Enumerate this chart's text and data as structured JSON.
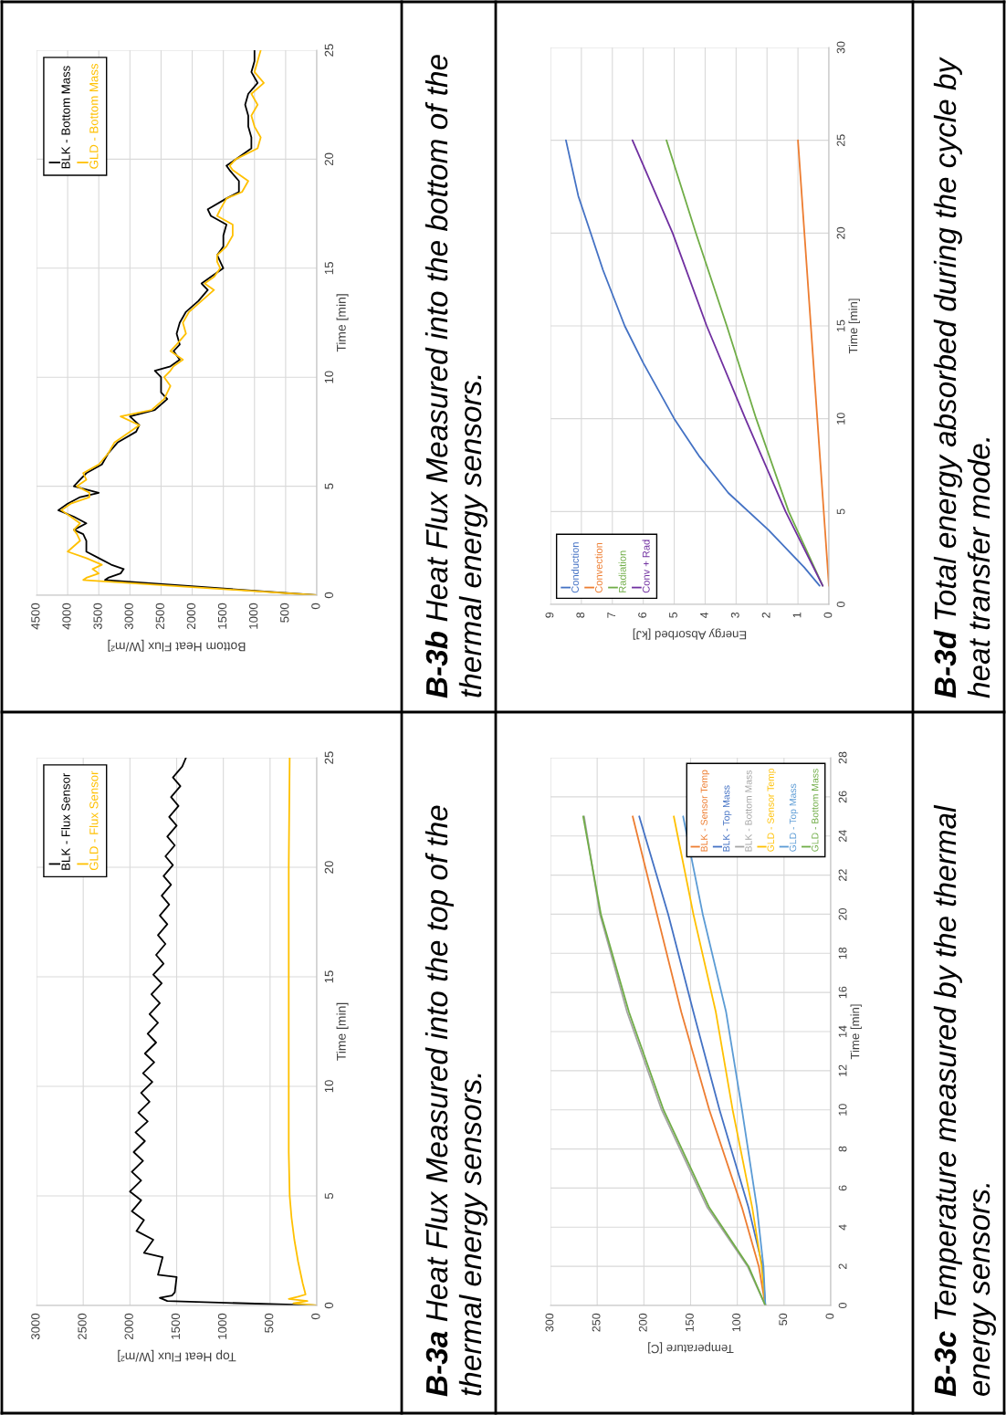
{
  "chart_data": [
    {
      "type": "line",
      "annotations": [
        "B-3a Heat Flux Measured into the top of the thermal energy sensors."
      ],
      "xlabel": "Top Heat Flux [W/m²]",
      "ylabel": "Time [min]",
      "xlim": [
        3000,
        0
      ],
      "xticks": [
        0,
        500,
        1000,
        1500,
        2000,
        2500,
        3000
      ],
      "ylim": [
        0,
        25
      ],
      "yticks": [
        0,
        5,
        10,
        15,
        20,
        25
      ],
      "grid": true,
      "legend": "top left",
      "series": [
        {
          "name": "BLK - Flux Sensor",
          "color": "#000000",
          "values": [
            0,
            0.2,
            0.35,
            0.45,
            0.6,
            1.3,
            1.4,
            2.2,
            2.4,
            3.0,
            3.4,
            3.9,
            4.3,
            4.8,
            5.2,
            5.7,
            6.1,
            6.6,
            7.0,
            7.5,
            7.9,
            8.4,
            8.8,
            9.3,
            9.7,
            10.2,
            10.6,
            11.1,
            11.5,
            12.0,
            12.4,
            12.9,
            13.3,
            13.8,
            14.2,
            14.7,
            15.1,
            15.6,
            16.0,
            16.5,
            16.9,
            17.4,
            17.8,
            18.3,
            18.7,
            19.2,
            19.6,
            20.1,
            20.5,
            21.0,
            21.4,
            21.9,
            22.3,
            22.8,
            23.2,
            23.7,
            24.1,
            24.6,
            25.0
          ],
          "x": [
            0,
            1600,
            1680,
            1550,
            1520,
            1500,
            1700,
            1650,
            1850,
            1750,
            1930,
            1850,
            1980,
            1880,
            2000,
            1880,
            1980,
            1860,
            1960,
            1840,
            1940,
            1810,
            1910,
            1790,
            1880,
            1760,
            1860,
            1740,
            1840,
            1720,
            1810,
            1700,
            1790,
            1680,
            1770,
            1660,
            1750,
            1640,
            1720,
            1620,
            1700,
            1600,
            1680,
            1580,
            1660,
            1560,
            1640,
            1540,
            1620,
            1520,
            1600,
            1500,
            1580,
            1480,
            1560,
            1460,
            1540,
            1440,
            1400
          ]
        },
        {
          "name": "GLD - Flux Sensor",
          "color": "#ffc000",
          "values": [
            0,
            0.1,
            0.2,
            0.3,
            0.4,
            0.5,
            1,
            2,
            3,
            4,
            5,
            7,
            10,
            15,
            20,
            25
          ],
          "x": [
            0,
            250,
            100,
            300,
            200,
            120,
            150,
            200,
            240,
            270,
            290,
            300,
            300,
            300,
            300,
            290
          ]
        }
      ]
    },
    {
      "type": "line",
      "annotations": [
        "B-3b Heat Flux Measured into the bottom of the thermal energy sensors."
      ],
      "xlabel": "Bottom Heat Flux [W/m²]",
      "ylabel": "Time [min]",
      "xlim": [
        4500,
        0
      ],
      "xticks": [
        0,
        500,
        1000,
        1500,
        2000,
        2500,
        3000,
        3500,
        4000,
        4500
      ],
      "ylim": [
        0,
        25
      ],
      "yticks": [
        0,
        5,
        10,
        15,
        20,
        25
      ],
      "grid": true,
      "legend": "top left",
      "series": [
        {
          "name": "BLK - Bottom Mass",
          "color": "#000000",
          "values": [
            0,
            0.7,
            0.8,
            1.0,
            1.2,
            1.4,
            1.7,
            2.0,
            2.5,
            2.8,
            3.0,
            3.3,
            3.6,
            3.9,
            4.2,
            4.5,
            4.7,
            5.0,
            5.3,
            5.6,
            6.0,
            6.5,
            7.0,
            7.5,
            7.8,
            8.2,
            8.5,
            9.0,
            9.3,
            9.6,
            10.0,
            10.3,
            10.5,
            10.8,
            11.2,
            11.5,
            12.0,
            12.5,
            13.0,
            13.5,
            14.0,
            14.3,
            14.6,
            15.0,
            15.3,
            15.6,
            16.0,
            16.5,
            17.0,
            17.4,
            17.7,
            18.2,
            18.5,
            19.0,
            19.5,
            19.7,
            20.0,
            20.5,
            21.0,
            21.5,
            22.0,
            22.5,
            23.0,
            23.5,
            24.0,
            24.5,
            25
          ],
          "x": [
            0,
            3400,
            3350,
            3150,
            3100,
            3300,
            3500,
            3700,
            3700,
            3750,
            3900,
            3700,
            3900,
            4150,
            4000,
            3800,
            3500,
            3900,
            3800,
            3700,
            3450,
            3350,
            3200,
            2900,
            2850,
            3000,
            2600,
            2400,
            2500,
            2500,
            2500,
            2600,
            2350,
            2200,
            2300,
            2200,
            2250,
            2200,
            2100,
            1900,
            1750,
            1850,
            1700,
            1500,
            1550,
            1600,
            1500,
            1500,
            1450,
            1700,
            1750,
            1450,
            1250,
            1250,
            1400,
            1450,
            1300,
            1050,
            1050,
            1100,
            1100,
            1150,
            1100,
            950,
            1050,
            1000,
            1000
          ]
        },
        {
          "name": "GLD - Bottom Mass",
          "color": "#ffc000",
          "values": [
            0,
            0.7,
            0.8,
            1.0,
            1.2,
            1.4,
            1.7,
            2.0,
            2.5,
            2.8,
            3.0,
            3.3,
            3.6,
            3.9,
            4.2,
            4.5,
            4.7,
            5.0,
            5.3,
            5.6,
            6.0,
            6.5,
            7.0,
            7.5,
            7.8,
            8.2,
            8.5,
            9.0,
            9.3,
            9.6,
            10.0,
            10.3,
            10.5,
            10.8,
            11.2,
            11.5,
            12.0,
            12.5,
            13.0,
            13.5,
            14.0,
            14.3,
            14.6,
            15.0,
            15.3,
            15.6,
            16.0,
            16.5,
            17.0,
            17.4,
            17.7,
            18.2,
            18.5,
            19.0,
            19.5,
            19.7,
            20.0,
            20.5,
            21.0,
            21.5,
            22.0,
            22.5,
            23.0,
            23.5,
            24.0,
            24.5,
            25
          ],
          "x": [
            0,
            3750,
            3700,
            3500,
            3600,
            3450,
            3700,
            4000,
            3800,
            3850,
            3900,
            3800,
            3950,
            4100,
            3950,
            3650,
            3650,
            3850,
            3700,
            3750,
            3500,
            3350,
            3250,
            3000,
            2850,
            3150,
            2650,
            2450,
            2400,
            2350,
            2450,
            2350,
            2300,
            2150,
            2350,
            2250,
            2100,
            2150,
            2050,
            1850,
            1650,
            1800,
            1650,
            1550,
            1600,
            1600,
            1450,
            1350,
            1350,
            1600,
            1550,
            1450,
            1200,
            1100,
            1350,
            1400,
            1300,
            950,
            900,
            1000,
            1050,
            950,
            1050,
            850,
            1000,
            950,
            900
          ]
        }
      ]
    },
    {
      "type": "line",
      "annotations": [
        "B-3c Temperature measured by the thermal energy sensors."
      ],
      "xlabel": "Temperature [C]",
      "ylabel": "Time [min]",
      "xlim": [
        300,
        0
      ],
      "xticks": [
        0,
        50,
        100,
        150,
        200,
        250,
        300
      ],
      "ylim": [
        0,
        28
      ],
      "yticks": [
        0,
        2,
        4,
        6,
        8,
        10,
        12,
        14,
        16,
        18,
        20,
        22,
        24,
        26,
        28
      ],
      "grid": true,
      "legend": "top right",
      "series": [
        {
          "name": "BLK - Sensor Temp",
          "color": "#ed7d31",
          "values": [
            0,
            2,
            5,
            10,
            15,
            20,
            25
          ],
          "x": [
            70,
            77,
            95,
            130,
            160,
            186,
            212
          ]
        },
        {
          "name": "BLK - Top Mass",
          "color": "#4472c4",
          "values": [
            0,
            2,
            5,
            10,
            15,
            20,
            25
          ],
          "x": [
            70,
            73,
            88,
            119,
            147,
            174,
            205
          ]
        },
        {
          "name": "BLK - Bottom Mass",
          "color": "#a5a5a5",
          "values": [
            0,
            2,
            5,
            10,
            15,
            20,
            25
          ],
          "x": [
            70,
            89,
            132,
            181,
            218,
            247,
            264
          ]
        },
        {
          "name": "GLD - Sensor Temp",
          "color": "#ffc000",
          "values": [
            0,
            2,
            5,
            10,
            15,
            20,
            25
          ],
          "x": [
            70,
            74,
            84,
            105,
            123,
            147,
            168
          ]
        },
        {
          "name": "GLD - Top Mass",
          "color": "#5b9bd5",
          "values": [
            0,
            2,
            5,
            10,
            15,
            20,
            25
          ],
          "x": [
            70,
            72,
            79,
            95,
            112,
            137,
            158
          ]
        },
        {
          "name": "GLD - Bottom Mass",
          "color": "#70ad47",
          "values": [
            0,
            2,
            5,
            10,
            15,
            20,
            25
          ],
          "x": [
            70,
            88,
            130,
            179,
            216,
            246,
            265
          ]
        }
      ]
    },
    {
      "type": "line",
      "annotations": [
        "B-3d Total energy absorbed during the cycle by heat transfer mode."
      ],
      "xlabel": "Energy Absorbed [kJ]",
      "ylabel": "Time [min]",
      "xlim": [
        9,
        0
      ],
      "xticks": [
        0,
        1,
        2,
        3,
        4,
        5,
        6,
        7,
        8,
        9
      ],
      "ylim": [
        0,
        30
      ],
      "yticks": [
        0,
        5,
        10,
        15,
        20,
        25,
        30
      ],
      "grid": true,
      "legend": "bottom left",
      "series": [
        {
          "name": "Conduction",
          "color": "#4472c4",
          "values": [
            1,
            2,
            4,
            6,
            8,
            10,
            13,
            15,
            18,
            20,
            22,
            25
          ],
          "x": [
            0.3,
            0.8,
            1.95,
            3.25,
            4.2,
            5.0,
            6.0,
            6.6,
            7.3,
            7.7,
            8.1,
            8.5
          ]
        },
        {
          "name": "Convection",
          "color": "#ed7d31",
          "values": [
            1,
            25
          ],
          "x": [
            0,
            1.0
          ]
        },
        {
          "name": "Radiation",
          "color": "#70ad47",
          "values": [
            1,
            5,
            10,
            15,
            20,
            25
          ],
          "x": [
            0.2,
            1.3,
            2.35,
            3.3,
            4.3,
            5.25
          ]
        },
        {
          "name": "Conv + Rad",
          "color": "#7030a0",
          "values": [
            1,
            5,
            10,
            15,
            20,
            25
          ],
          "x": [
            0.2,
            1.4,
            2.7,
            3.95,
            5.05,
            6.35
          ]
        }
      ]
    }
  ]
}
